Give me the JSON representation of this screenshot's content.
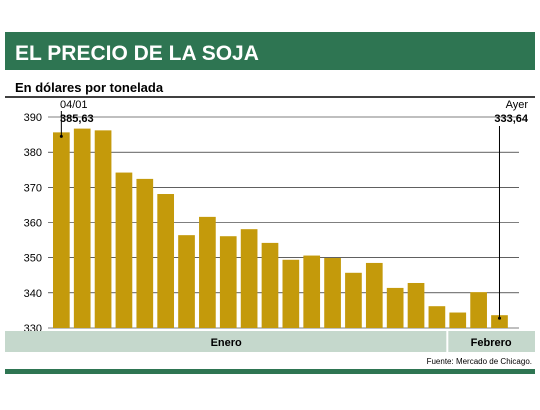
{
  "chart_data": {
    "type": "bar",
    "title": "EL PRECIO DE LA SOJA",
    "subtitle": "En dólares por tonelada",
    "source": "Fuente: Mercado de Chicago.",
    "ylim": [
      330,
      390
    ],
    "yticks": [
      330,
      340,
      350,
      360,
      370,
      380,
      390
    ],
    "grid": true,
    "months": [
      {
        "label": "Enero",
        "count": 19
      },
      {
        "label": "Febrero",
        "count": 3
      }
    ],
    "values": [
      385.63,
      386.7,
      386.2,
      374.2,
      372.4,
      368.1,
      356.4,
      361.6,
      356.1,
      358.1,
      354.2,
      349.4,
      350.6,
      349.9,
      345.7,
      348.5,
      341.4,
      342.8,
      336.2,
      334.4,
      340.2,
      333.64
    ],
    "annotations": [
      {
        "index": 0,
        "label": "04/01",
        "value": "385,63"
      },
      {
        "index": 21,
        "label": "Ayer",
        "value": "333,64"
      }
    ],
    "colors": {
      "header": "#2e7552",
      "bar": "#c49a0b",
      "month_band": "#c5d8cc",
      "grid": "#000000"
    }
  }
}
